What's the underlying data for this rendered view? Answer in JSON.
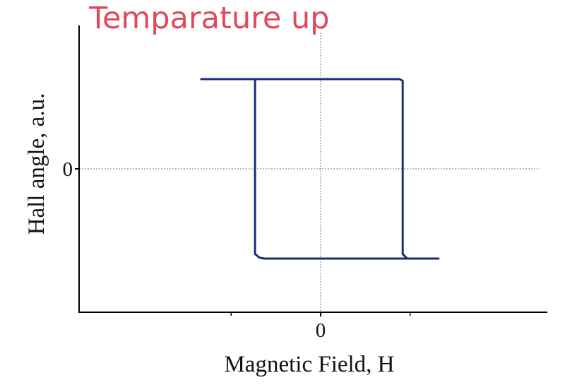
{
  "title": "Temparature up",
  "colors": {
    "title": "#e24a5a",
    "curve": "#1f2a78",
    "axes": "#000000",
    "guides": "#7a7a7a"
  },
  "chart_data": {
    "type": "line",
    "xlabel": "Magnetic Field, H",
    "ylabel": "Hall angle, a.u.",
    "x_ticks": [
      {
        "value": 0,
        "label": "0"
      }
    ],
    "y_ticks": [
      {
        "value": 0,
        "label": "0"
      }
    ],
    "x_minor_ticks": [
      -0.6,
      0.6
    ],
    "xlim": [
      -1,
      1.52
    ],
    "ylim": [
      -1.6,
      1.6
    ],
    "grid": false,
    "zero_guides": true,
    "series": [
      {
        "x": [
          -0.8,
          -0.2,
          0.45,
          0.53,
          0.55,
          0.55,
          0.58,
          0.79
        ],
        "y": [
          1,
          1,
          1,
          1,
          0.98,
          -0.95,
          -1,
          -1
        ]
      },
      {
        "x": [
          0.79,
          0.58,
          -0.38,
          -0.41,
          -0.44,
          -0.44,
          -0.8
        ],
        "y": [
          -1,
          -1,
          -1,
          -0.99,
          -0.95,
          1,
          1
        ]
      }
    ]
  }
}
